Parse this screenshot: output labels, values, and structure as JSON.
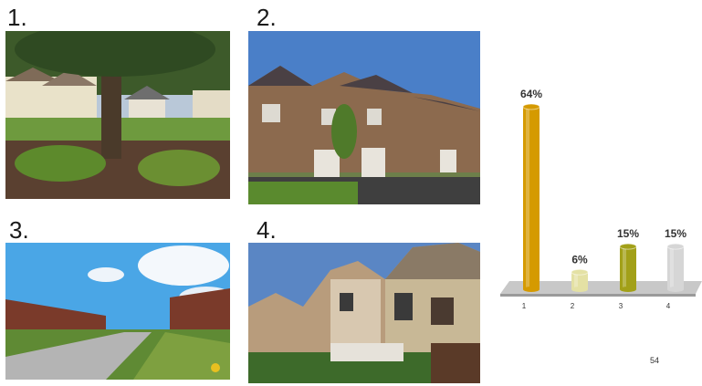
{
  "photos": [
    {
      "label": "1."
    },
    {
      "label": "2."
    },
    {
      "label": "3."
    },
    {
      "label": "4."
    }
  ],
  "page_number": "54",
  "colors": {
    "bar1": "#d59a00",
    "bar2": "#e4e1a4",
    "bar3": "#a2a018",
    "bar4": "#d6d6d6",
    "floor": "#c8c8c8"
  },
  "chart_data": {
    "type": "bar",
    "categories": [
      "1",
      "2",
      "3",
      "4"
    ],
    "values": [
      64,
      6,
      15,
      15
    ],
    "value_labels": [
      "64%",
      "6%",
      "15%",
      "15%"
    ],
    "ylim": [
      0,
      64
    ],
    "title": "",
    "xlabel": "",
    "ylabel": "",
    "grid": false,
    "legend": "none"
  }
}
